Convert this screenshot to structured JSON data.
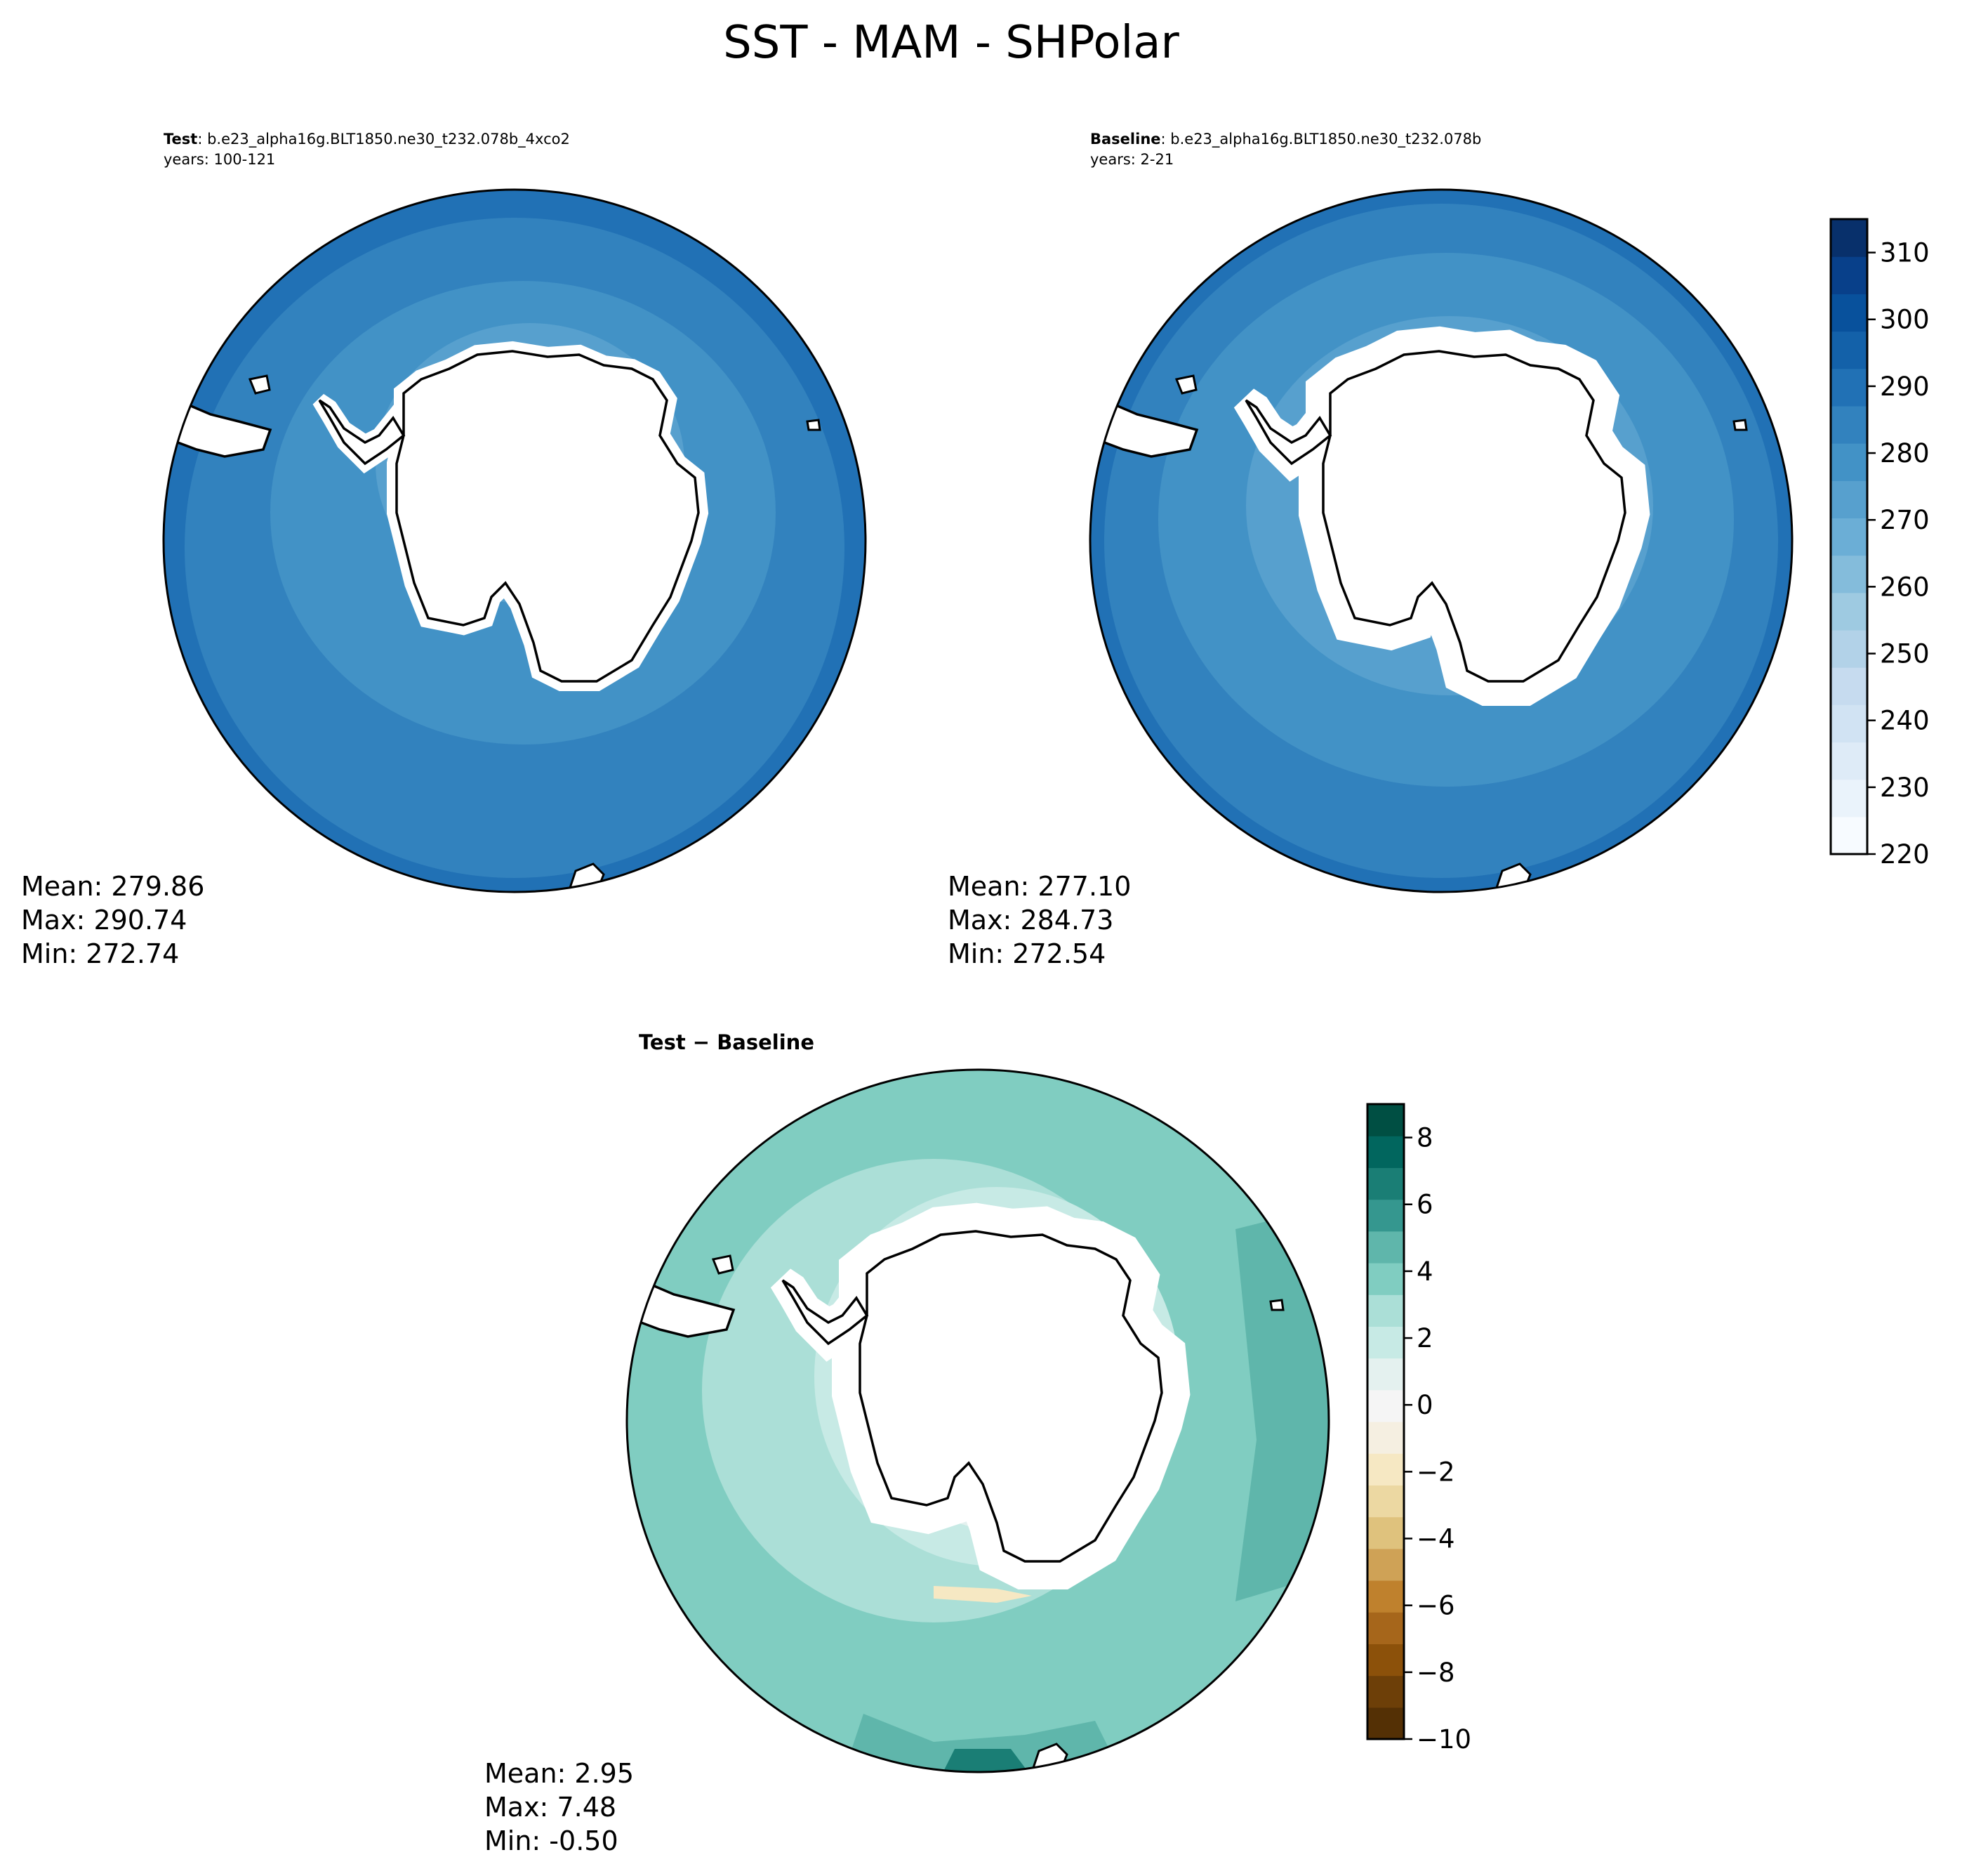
{
  "title": "SST - MAM - SHPolar",
  "colors": {
    "seq": [
      "#f7fbff",
      "#eaf3fb",
      "#deebf7",
      "#d1e3f3",
      "#c6dbef",
      "#b2d2e8",
      "#9ecae1",
      "#84bcdb",
      "#6baed6",
      "#57a0ce",
      "#4292c6",
      "#3282be",
      "#2171b5",
      "#1361a9",
      "#08519c",
      "#08408a",
      "#08306b"
    ],
    "div": [
      "#543005",
      "#6d3f08",
      "#8c510a",
      "#a6661b",
      "#bf812d",
      "#cfa256",
      "#dfc27d",
      "#ecd8a2",
      "#f6e8c3",
      "#f5efe1",
      "#f5f5f5",
      "#e4f1ef",
      "#c7eae5",
      "#abdfd7",
      "#80cdc1",
      "#5fb6ab",
      "#35978f",
      "#1a7e75",
      "#01665e",
      "#004f43"
    ]
  },
  "panels": {
    "test": {
      "label": "Test",
      "case": ": b.e23_alpha16g.BLT1850.ne30_t232.078b_4xco2",
      "years": "years: 100-121",
      "stats": {
        "mean": "Mean: 279.86",
        "max": "Max: 290.74",
        "min": "Min: 272.74"
      }
    },
    "baseline": {
      "label": "Baseline",
      "case": ": b.e23_alpha16g.BLT1850.ne30_t232.078b",
      "years": "years: 2-21",
      "stats": {
        "mean": "Mean: 277.10",
        "max": "Max: 284.73",
        "min": "Min: 272.54"
      }
    },
    "diff": {
      "title_a": "Test",
      "title_op": " − ",
      "title_b": "Baseline",
      "stats": {
        "mean": "Mean:  2.95",
        "max": "Max:  7.48",
        "min": "Min: -0.50"
      }
    }
  },
  "colorbars": {
    "sst": {
      "min": 220,
      "max": 315,
      "ticks": [
        "220",
        "230",
        "240",
        "250",
        "260",
        "270",
        "280",
        "290",
        "300",
        "310"
      ],
      "tick_values": [
        220,
        230,
        240,
        250,
        260,
        270,
        280,
        290,
        300,
        310
      ]
    },
    "diff": {
      "min": -10,
      "max": 9,
      "ticks": [
        "−10",
        "−8",
        "−6",
        "−4",
        "−2",
        "0",
        "2",
        "4",
        "6",
        "8"
      ],
      "tick_values": [
        -10,
        -8,
        -6,
        -4,
        -2,
        0,
        2,
        4,
        6,
        8
      ]
    }
  }
}
